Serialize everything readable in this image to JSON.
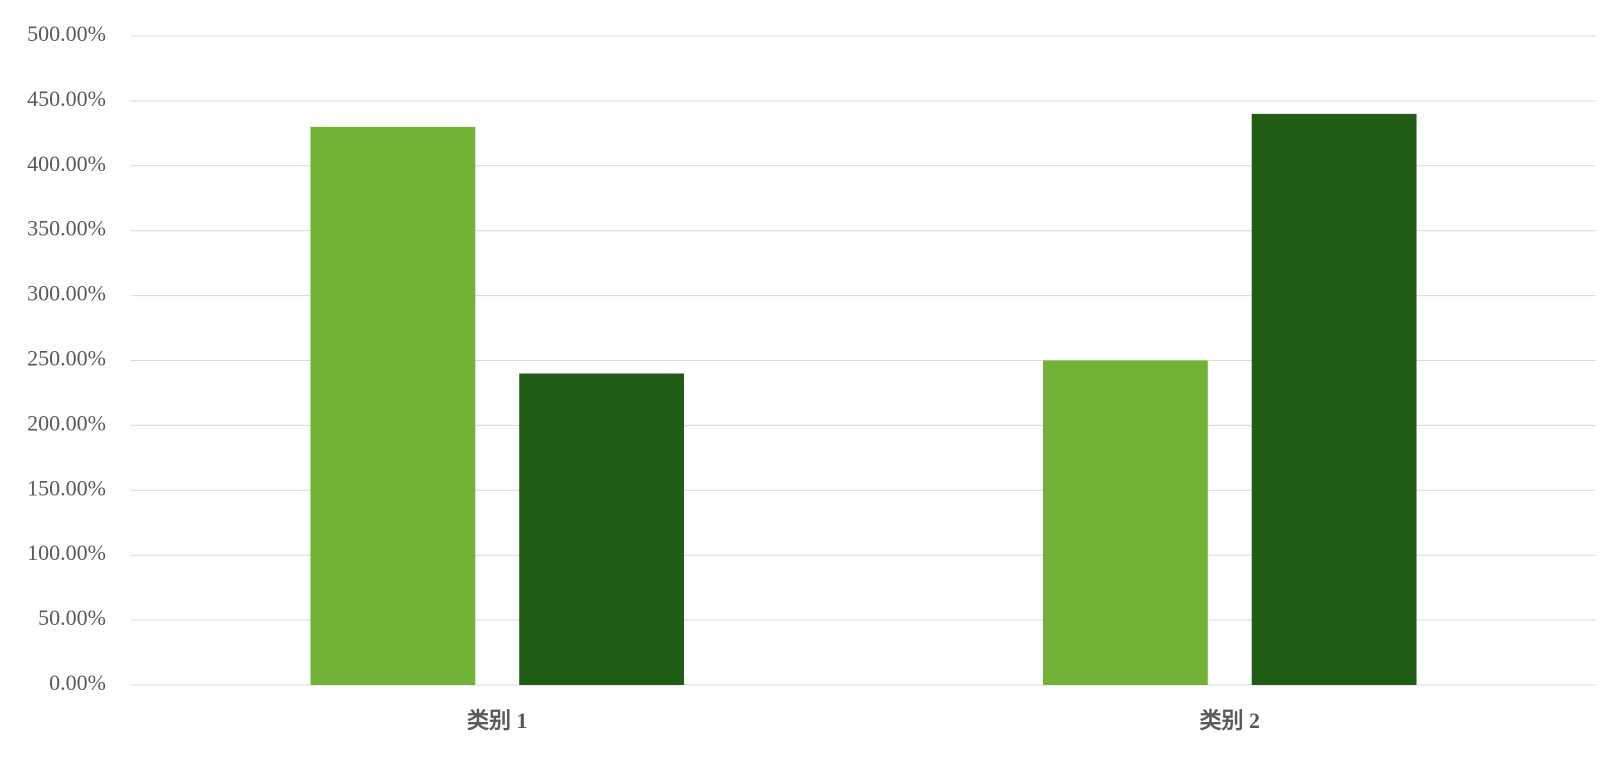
{
  "chart_data": {
    "type": "bar",
    "categories": [
      "类别 1",
      "类别 2"
    ],
    "series": [
      {
        "color": "#72b236",
        "values": [
          430,
          250
        ]
      },
      {
        "color": "#205c15",
        "values": [
          240,
          440
        ]
      }
    ],
    "ylim": [
      0,
      500
    ],
    "yticks": [
      {
        "value": 0,
        "label": "0.00%"
      },
      {
        "value": 50,
        "label": "50.00%"
      },
      {
        "value": 100,
        "label": "100.00%"
      },
      {
        "value": 150,
        "label": "150.00%"
      },
      {
        "value": 200,
        "label": "200.00%"
      },
      {
        "value": 250,
        "label": "250.00%"
      },
      {
        "value": 300,
        "label": "300.00%"
      },
      {
        "value": 350,
        "label": "350.00%"
      },
      {
        "value": 400,
        "label": "400.00%"
      },
      {
        "value": 450,
        "label": "450.00%"
      },
      {
        "value": 500,
        "label": "500.00%"
      }
    ],
    "grid": true
  }
}
